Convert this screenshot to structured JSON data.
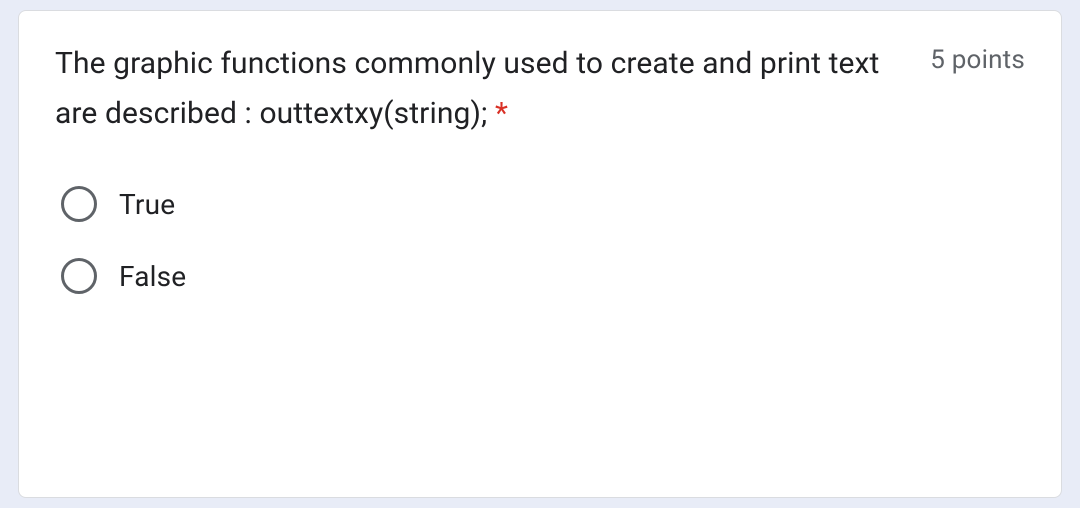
{
  "question": {
    "text": "The graphic functions commonly used to create and print text are described : outtextxy(string);",
    "required_mark": "*",
    "points_label": "5 points",
    "options": [
      {
        "label": "True"
      },
      {
        "label": "False"
      }
    ]
  },
  "colors": {
    "page_background": "#e8ecf7",
    "card_background": "#ffffff",
    "card_border": "#dadce0",
    "text_primary": "#202124",
    "text_secondary": "#5f6368",
    "required": "#d93025",
    "radio_border": "#5f6368"
  }
}
